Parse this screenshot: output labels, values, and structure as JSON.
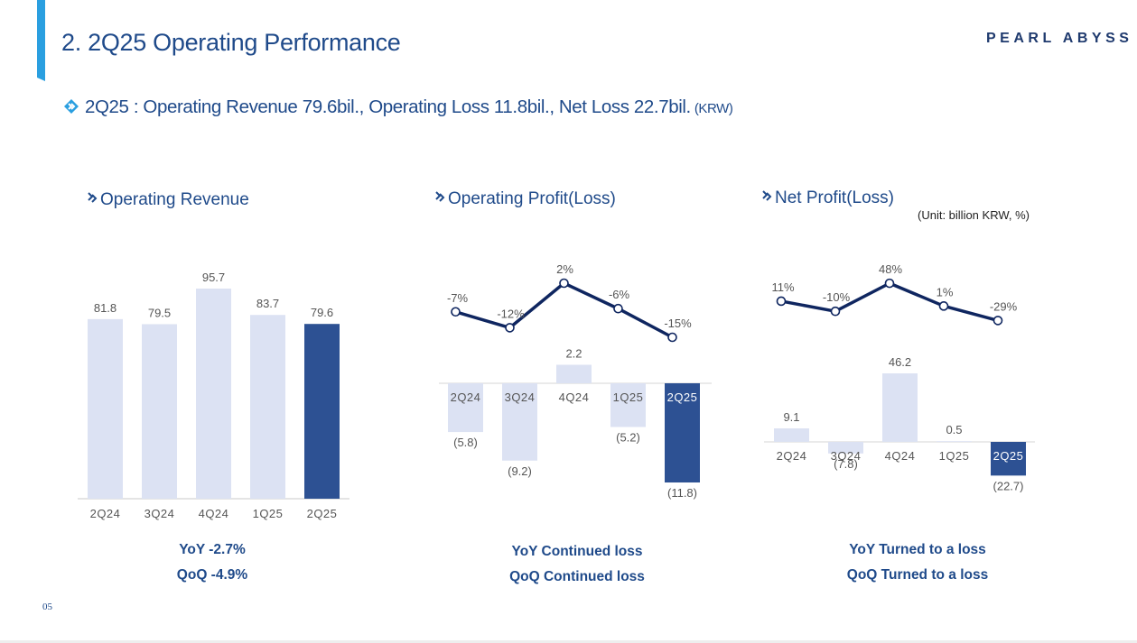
{
  "page_title": "2. 2Q25 Operating Performance",
  "logo_text": "PEARL ABYSS",
  "headline": {
    "text": "2Q25 :  Operating Revenue 79.6bil., Operating Loss 11.8bil., Net Loss 22.7bil.",
    "currency": "(KRW)"
  },
  "unit_note": "(Unit: billion KRW, %)",
  "page_number": "05",
  "colors": {
    "accent_blue": "#2a9fe0",
    "title_navy": "#1f4a8a",
    "bar_light": "#dce2f3",
    "bar_highlight": "#2d5193",
    "line_navy": "#0f2660"
  },
  "icons": {
    "headline": "diamond-arrow-icon",
    "section": "chevron-double-icon"
  },
  "charts": {
    "revenue": {
      "title": "Operating Revenue",
      "summary": [
        "YoY  -2.7%",
        "QoQ  -4.9%"
      ]
    },
    "op_profit": {
      "title": "Operating Profit(Loss)",
      "summary": [
        "YoY Continued loss",
        "QoQ Continued loss"
      ]
    },
    "net_profit": {
      "title": "Net Profit(Loss)",
      "summary": [
        "YoY Turned to a loss",
        "QoQ Turned to a loss"
      ]
    }
  },
  "chart_data": [
    {
      "type": "bar",
      "title": "Operating Revenue",
      "categories": [
        "2Q24",
        "3Q24",
        "4Q24",
        "1Q25",
        "2Q25"
      ],
      "values": [
        81.8,
        79.5,
        95.7,
        83.7,
        79.6
      ],
      "value_labels": [
        "81.8",
        "79.5",
        "95.7",
        "83.7",
        "79.6"
      ],
      "highlight": "2Q25",
      "ylim": [
        0,
        95.7
      ]
    },
    {
      "type": "bar",
      "title": "Operating Profit(Loss)",
      "categories": [
        "2Q24",
        "3Q24",
        "4Q24",
        "1Q25",
        "2Q25"
      ],
      "values": [
        -5.8,
        -9.2,
        2.2,
        -5.2,
        -11.8
      ],
      "value_labels": [
        "(5.8)",
        "(9.2)",
        "2.2",
        "(5.2)",
        "(11.8)"
      ],
      "margin": {
        "values": [
          -7,
          -12,
          2,
          -6,
          -15
        ],
        "labels": [
          "-7%",
          "-12%",
          "2%",
          "-6%",
          "-15%"
        ]
      },
      "highlight": "2Q25"
    },
    {
      "type": "bar",
      "title": "Net Profit(Loss)",
      "categories": [
        "2Q24",
        "3Q24",
        "4Q24",
        "1Q25",
        "2Q25"
      ],
      "values": [
        9.1,
        -7.8,
        46.2,
        0.5,
        -22.7
      ],
      "value_labels": [
        "9.1",
        "(7.8)",
        "46.2",
        "0.5",
        "(22.7)"
      ],
      "margin": {
        "values": [
          11,
          -10,
          48,
          1,
          -29
        ],
        "labels": [
          "11%",
          "-10%",
          "48%",
          "1%",
          "-29%"
        ]
      },
      "highlight": "2Q25"
    }
  ]
}
